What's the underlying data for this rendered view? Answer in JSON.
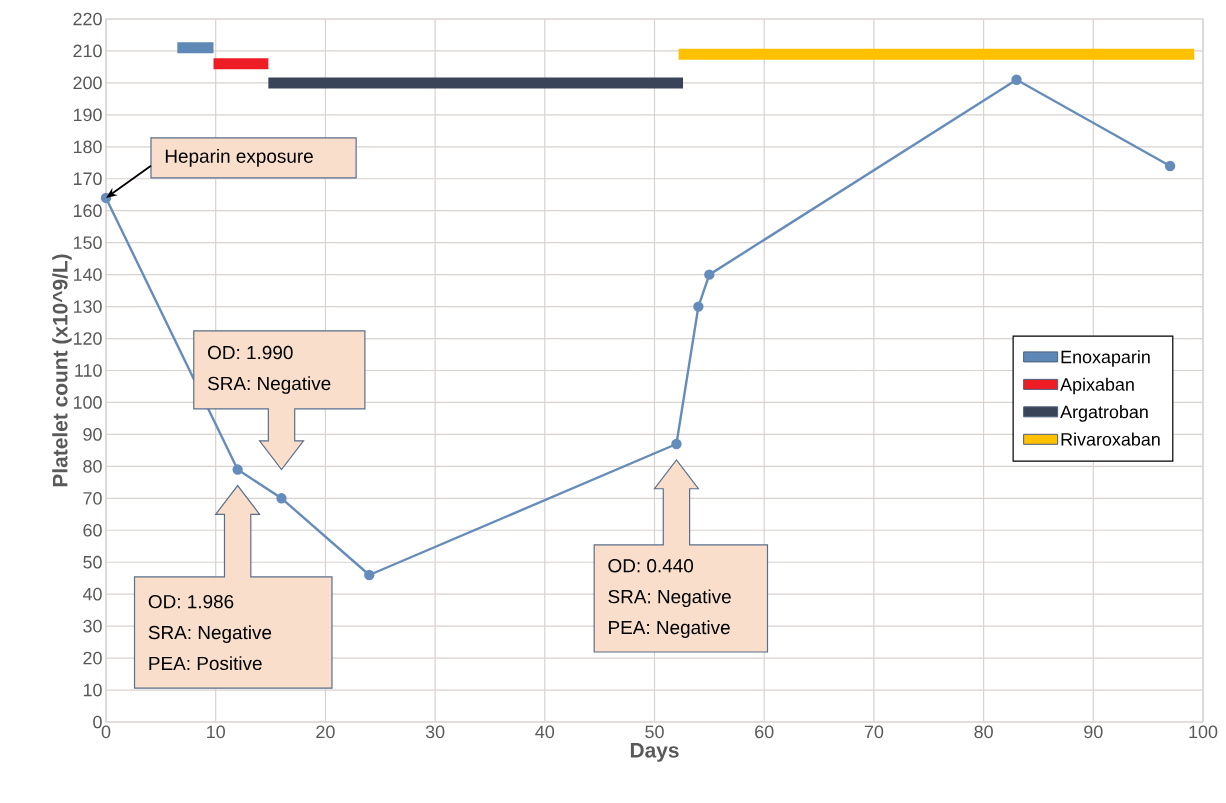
{
  "chart_data": {
    "type": "line",
    "xlabel": "Days",
    "ylabel": "Platelet count (x10^9/L)",
    "xlim": [
      0,
      100
    ],
    "xticks": [
      0,
      10,
      20,
      30,
      40,
      50,
      60,
      70,
      80,
      90,
      100
    ],
    "ylim": [
      0,
      220
    ],
    "yticks": [
      0,
      10,
      20,
      30,
      40,
      50,
      60,
      70,
      80,
      90,
      100,
      110,
      120,
      130,
      140,
      150,
      160,
      170,
      180,
      190,
      200,
      210,
      220
    ],
    "grid": true,
    "legend": "right",
    "marker": "circle",
    "series": [
      {
        "color": "#658CBB",
        "x": [
          0,
          12,
          16,
          24,
          52,
          54,
          55,
          83,
          97
        ],
        "values": [
          164,
          79,
          70,
          46,
          87,
          130,
          140,
          201,
          174
        ]
      },
      {
        "name": "Enoxaparin",
        "type": "line",
        "marker": "none",
        "color": "#5E88B5",
        "x": [
          6.5,
          9.8
        ],
        "values": [
          211,
          211
        ]
      },
      {
        "name": "Apixaban",
        "type": "line",
        "marker": "none",
        "color": "#EE1C25",
        "x": [
          9.8,
          14.8
        ],
        "values": [
          206,
          206
        ]
      },
      {
        "name": "Argatroban",
        "type": "line",
        "marker": "none",
        "color": "#3A4459",
        "x": [
          14.8,
          52.6
        ],
        "values": [
          200,
          200
        ]
      },
      {
        "name": "Rivaroxaban",
        "type": "line",
        "marker": "none",
        "color": "#FFC000",
        "x": [
          52.2,
          99.2
        ],
        "values": [
          209,
          209
        ]
      }
    ],
    "annotations": [
      {
        "text": "Heparin exposure",
        "x": 0,
        "y": 164
      },
      "OD: 1.990",
      "SRA: Negative",
      "OD: 1.986",
      "SRA: Negative",
      "PEA: Positive",
      "OD: 0.440",
      "SRA: Negative",
      "PEA: Negative"
    ]
  }
}
